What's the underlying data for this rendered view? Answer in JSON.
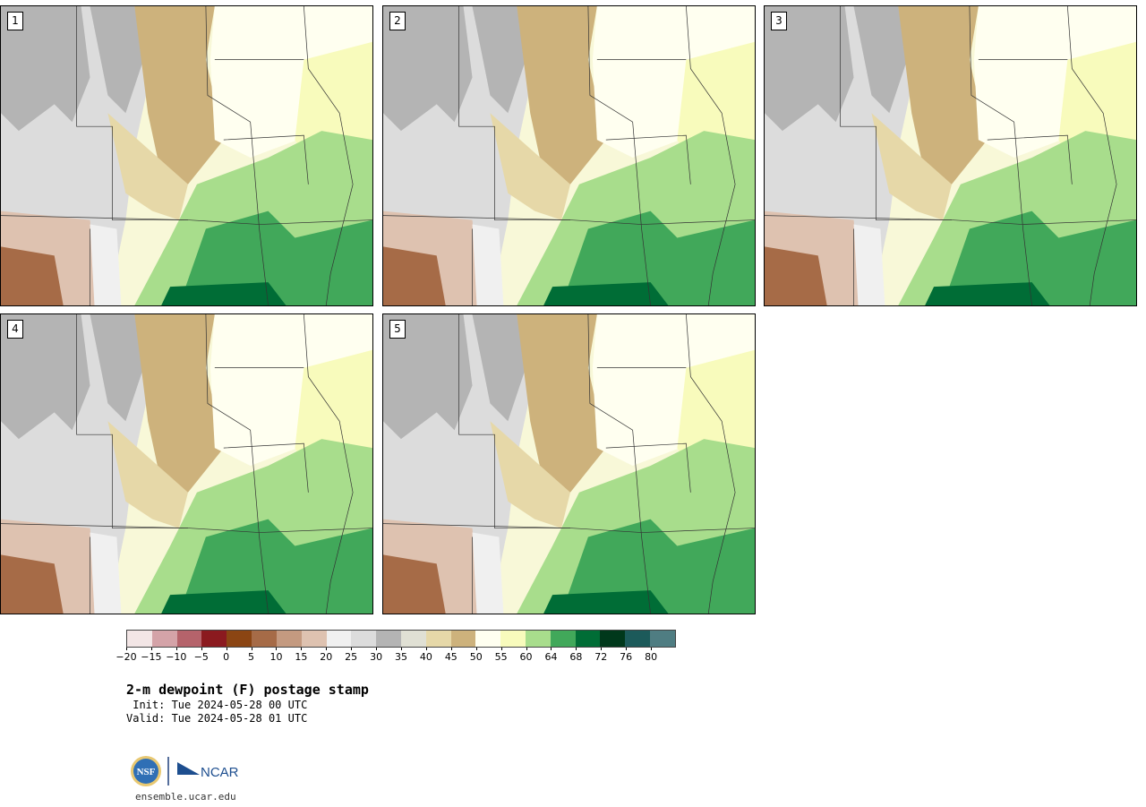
{
  "panels": [
    {
      "label": "1"
    },
    {
      "label": "2"
    },
    {
      "label": "3"
    },
    {
      "label": "4"
    },
    {
      "label": "5"
    }
  ],
  "colorbar": {
    "colors": [
      "#f3e6e6",
      "#d4a3a8",
      "#b5636b",
      "#8b1a1f",
      "#8b4513",
      "#a66b47",
      "#c49a80",
      "#dec2b0",
      "#f0f0f0",
      "#dcdcdc",
      "#b4b4b4",
      "#e0e0d4",
      "#e6d8a8",
      "#cdb27c",
      "#fffff0",
      "#f8fbbc",
      "#a8dd8c",
      "#41a85a",
      "#006d36",
      "#00381b",
      "#1c5a5a",
      "#4f7d82"
    ],
    "ticks": [
      "−20",
      "−15",
      "−10",
      "−5",
      "0",
      "5",
      "10",
      "15",
      "20",
      "25",
      "30",
      "35",
      "40",
      "45",
      "50",
      "55",
      "60",
      "64",
      "68",
      "72",
      "76",
      "80"
    ]
  },
  "title": "2-m dewpoint (F) postage stamp",
  "init": " Init: Tue 2024-05-28 00 UTC",
  "valid": "Valid: Tue 2024-05-28 01 UTC",
  "logos": {
    "nsf": "NSF",
    "ncar": "NCAR"
  },
  "site": "ensemble.ucar.edu"
}
